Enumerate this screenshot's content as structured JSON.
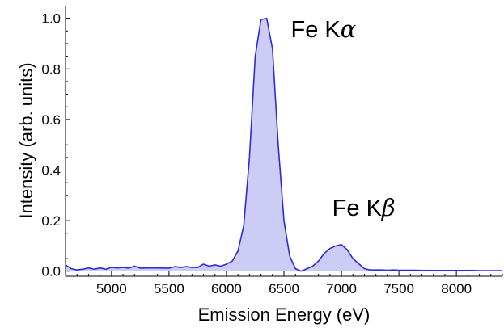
{
  "chart_data": {
    "type": "area",
    "title": "",
    "xlabel": "Emission Energy (eV)",
    "ylabel": "Intensity (arb. units)",
    "xlim": [
      4600,
      8400
    ],
    "ylim": [
      -0.02,
      1.05
    ],
    "xticks": [
      5000,
      5500,
      6000,
      6500,
      7000,
      7500,
      8000
    ],
    "xtick_labels": [
      "5000",
      "5500",
      "6000",
      "6500",
      "7000",
      "7500",
      "8000"
    ],
    "yticks": [
      0.0,
      0.2,
      0.4,
      0.6,
      0.8,
      1.0
    ],
    "ytick_labels": [
      "0.0",
      "0.2",
      "0.4",
      "0.6",
      "0.8",
      "1.0"
    ],
    "grid": false,
    "legend": "none",
    "line_color": "#2b2bd9",
    "fill_color": "#ccccf5",
    "series": [
      {
        "x": [
          4600,
          4650,
          4700,
          4750,
          4800,
          4850,
          4900,
          4950,
          5000,
          5050,
          5100,
          5150,
          5200,
          5250,
          5300,
          5350,
          5400,
          5450,
          5500,
          5550,
          5600,
          5650,
          5700,
          5750,
          5800,
          5850,
          5900,
          5950,
          6000,
          6050,
          6100,
          6150,
          6200,
          6250,
          6300,
          6350,
          6400,
          6450,
          6500,
          6550,
          6600,
          6650,
          6700,
          6750,
          6800,
          6850,
          6900,
          6950,
          7000,
          7050,
          7100,
          7150,
          7200,
          7250,
          7300,
          7350,
          7400,
          7450,
          7500,
          7550,
          7600,
          7650,
          7700,
          7750,
          7800,
          7850,
          7900,
          7950,
          8000,
          8050,
          8100,
          8150,
          8200,
          8250,
          8300,
          8350,
          8400
        ],
        "y": [
          0.025,
          0.01,
          0.005,
          0.008,
          0.013,
          0.008,
          0.013,
          0.008,
          0.015,
          0.013,
          0.015,
          0.012,
          0.02,
          0.012,
          0.013,
          0.013,
          0.013,
          0.012,
          0.012,
          0.018,
          0.015,
          0.018,
          0.015,
          0.015,
          0.028,
          0.02,
          0.025,
          0.02,
          0.028,
          0.04,
          0.08,
          0.18,
          0.45,
          0.85,
          0.995,
          1.0,
          0.88,
          0.5,
          0.2,
          0.06,
          0.01,
          0.0,
          0.01,
          0.02,
          0.04,
          0.07,
          0.09,
          0.1,
          0.105,
          0.085,
          0.05,
          0.03,
          0.01,
          0.005,
          0.005,
          0.005,
          0.004,
          0.005,
          0.004,
          0.004,
          0.004,
          0.004,
          0.003,
          0.003,
          0.003,
          0.003,
          0.003,
          0.003,
          0.003,
          0.003,
          0.003,
          0.003,
          0.002,
          0.002,
          0.002,
          0.002,
          0.002
        ]
      }
    ],
    "annotations": [
      {
        "text_main": "Fe K",
        "text_greek": "α",
        "x": 6560,
        "y": 0.925
      },
      {
        "text_main": "Fe K",
        "text_greek": "β",
        "x": 6920,
        "y": 0.22
      }
    ]
  }
}
